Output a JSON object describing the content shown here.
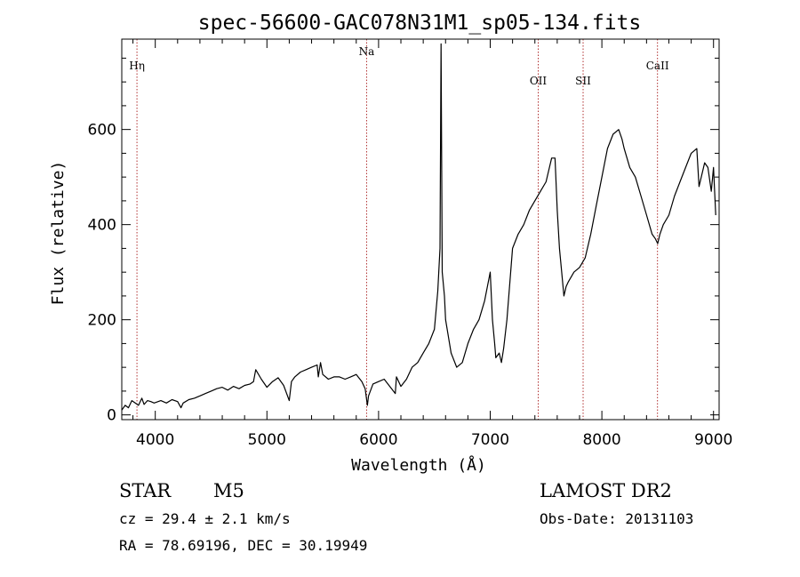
{
  "chart_data": {
    "type": "line",
    "title": "spec-56600-GAC078N31M1_sp05-134.fits",
    "xlabel": "Wavelength (Å)",
    "ylabel": "Flux (relative)",
    "xlim": [
      3700,
      9050
    ],
    "ylim": [
      -10,
      790
    ],
    "x_ticks": [
      4000,
      5000,
      6000,
      7000,
      8000,
      9000
    ],
    "y_ticks": [
      0,
      200,
      400,
      600
    ],
    "grid": false,
    "series": [
      {
        "x": [
          3700,
          3730,
          3760,
          3790,
          3820,
          3850,
          3880,
          3900,
          3930,
          3960,
          3990,
          4050,
          4100,
          4150,
          4200,
          4230,
          4250,
          4300,
          4350,
          4400,
          4450,
          4500,
          4550,
          4600,
          4650,
          4700,
          4750,
          4800,
          4850,
          4880,
          4900,
          4950,
          5000,
          5050,
          5100,
          5150,
          5200,
          5220,
          5250,
          5300,
          5350,
          5400,
          5450,
          5460,
          5480,
          5500,
          5550,
          5600,
          5650,
          5700,
          5750,
          5800,
          5850,
          5880,
          5900,
          5910,
          5950,
          6000,
          6050,
          6100,
          6150,
          6160,
          6200,
          6250,
          6300,
          6350,
          6400,
          6450,
          6500,
          6530,
          6550,
          6560,
          6570,
          6590,
          6600,
          6650,
          6700,
          6750,
          6800,
          6850,
          6900,
          6950,
          7000,
          7020,
          7040,
          7050,
          7080,
          7100,
          7120,
          7150,
          7200,
          7250,
          7300,
          7350,
          7400,
          7450,
          7500,
          7530,
          7550,
          7580,
          7600,
          7620,
          7640,
          7660,
          7680,
          7700,
          7750,
          7800,
          7850,
          7900,
          7950,
          8000,
          8050,
          8100,
          8150,
          8180,
          8200,
          8250,
          8300,
          8350,
          8400,
          8450,
          8480,
          8500,
          8520,
          8550,
          8600,
          8650,
          8700,
          8750,
          8800,
          8850,
          8870,
          8900,
          8920,
          8950,
          8980,
          9000,
          9020
        ],
        "values": [
          10,
          20,
          15,
          30,
          25,
          20,
          35,
          22,
          30,
          28,
          25,
          30,
          25,
          32,
          28,
          15,
          25,
          32,
          35,
          40,
          45,
          50,
          55,
          58,
          52,
          60,
          55,
          62,
          65,
          70,
          95,
          75,
          58,
          70,
          78,
          62,
          30,
          70,
          80,
          90,
          95,
          100,
          105,
          80,
          110,
          85,
          75,
          80,
          80,
          75,
          80,
          85,
          70,
          55,
          20,
          40,
          65,
          70,
          75,
          60,
          45,
          80,
          60,
          75,
          100,
          110,
          130,
          150,
          180,
          260,
          350,
          780,
          300,
          250,
          200,
          130,
          100,
          110,
          150,
          180,
          200,
          240,
          300,
          200,
          150,
          120,
          130,
          110,
          140,
          200,
          350,
          380,
          400,
          430,
          450,
          470,
          490,
          520,
          540,
          540,
          430,
          350,
          300,
          250,
          270,
          280,
          300,
          310,
          330,
          380,
          440,
          500,
          560,
          590,
          600,
          580,
          560,
          520,
          500,
          460,
          420,
          380,
          370,
          360,
          380,
          400,
          420,
          460,
          490,
          520,
          550,
          560,
          480,
          510,
          530,
          520,
          470,
          520,
          420
        ]
      }
    ],
    "annotations": [
      {
        "label": "Hη",
        "x": 3836
      },
      {
        "label": "Na",
        "x": 5893
      },
      {
        "label": "OII",
        "x": 7430
      },
      {
        "label": "SII",
        "x": 7832
      },
      {
        "label": "CaII",
        "x": 8498
      }
    ]
  },
  "info": {
    "object_class": "STAR",
    "subclass": "M5",
    "survey": "LAMOST DR2",
    "redshift": "cz = 29.4 ± 2.1 km/s",
    "obs_date": "Obs-Date: 20131103",
    "coords": "RA =  78.69196, DEC =  30.19949"
  },
  "colors": {
    "spectrum": "#000000",
    "marker_line": "#b03030"
  }
}
